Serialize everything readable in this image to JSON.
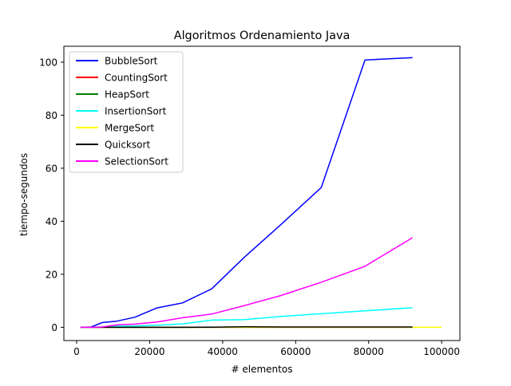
{
  "chart_data": {
    "type": "line",
    "title": "Algoritmos Ordenamiento Java",
    "xlabel": "# elementos",
    "ylabel": "tiempo-segundos",
    "xlim": [
      -3500,
      105000
    ],
    "ylim": [
      -5,
      106
    ],
    "xticks": [
      0,
      20000,
      40000,
      60000,
      80000,
      100000
    ],
    "yticks": [
      0,
      20,
      40,
      60,
      80,
      100
    ],
    "legend_position": "top-left",
    "grid": false,
    "series": [
      {
        "name": "BubbleSort",
        "color": "#0000ff",
        "x": [
          1000,
          4000,
          7000,
          11000,
          16000,
          22000,
          29000,
          37000,
          46000,
          56000,
          67000,
          79000,
          92000
        ],
        "y": [
          0,
          0.1,
          1.8,
          2.3,
          3.8,
          7.3,
          9.2,
          14.5,
          26.5,
          38.8,
          52.7,
          100.8,
          101.7
        ]
      },
      {
        "name": "CountingSort",
        "color": "#ff0000",
        "x": [
          1000,
          4000,
          7000,
          11000,
          16000,
          22000,
          29000,
          37000,
          46000,
          56000,
          67000,
          79000,
          92000
        ],
        "y": [
          0,
          0,
          0,
          0,
          0,
          0,
          0,
          0,
          0,
          0,
          0,
          0,
          0
        ]
      },
      {
        "name": "HeapSort",
        "color": "#008000",
        "x": [
          1000,
          4000,
          7000,
          11000,
          16000,
          22000,
          29000,
          37000,
          46000,
          56000,
          67000,
          79000,
          92000
        ],
        "y": [
          0,
          0,
          0,
          0,
          0,
          0,
          0,
          0,
          0.05,
          0.05,
          0.05,
          0.05,
          0.05
        ]
      },
      {
        "name": "InsertionSort",
        "color": "#00ffff",
        "x": [
          1000,
          4000,
          7000,
          11000,
          16000,
          22000,
          29000,
          37000,
          46000,
          56000,
          67000,
          79000,
          92000
        ],
        "y": [
          0,
          0,
          0.1,
          0.4,
          0.5,
          0.8,
          1.3,
          2.7,
          2.9,
          4.1,
          5.1,
          6.2,
          7.4
        ]
      },
      {
        "name": "MergeSort",
        "color": "#ffff00",
        "x": [
          1000,
          4000,
          7000,
          11000,
          16000,
          22000,
          29000,
          37000,
          46000,
          56000,
          67000,
          79000,
          92000,
          100000
        ],
        "y": [
          0,
          0,
          0,
          0,
          0,
          0,
          0,
          0,
          0,
          0,
          0,
          0,
          0,
          0
        ]
      },
      {
        "name": "Quicksort",
        "color": "#000000",
        "x": [
          1000,
          4000,
          7000,
          11000,
          16000,
          22000,
          29000,
          37000,
          46000,
          56000,
          67000,
          79000,
          92000
        ],
        "y": [
          0,
          0,
          0,
          0,
          0,
          0,
          0,
          0.05,
          0.2,
          0.1,
          0.1,
          0.1,
          0.1
        ]
      },
      {
        "name": "SelectionSort",
        "color": "#ff00ff",
        "x": [
          1000,
          4000,
          7000,
          11000,
          16000,
          22000,
          29000,
          37000,
          46000,
          56000,
          67000,
          79000,
          92000
        ],
        "y": [
          0,
          0,
          0.1,
          0.9,
          1.2,
          2.0,
          3.6,
          5.0,
          8.2,
          12.0,
          17.0,
          23.0,
          33.8
        ]
      }
    ]
  }
}
